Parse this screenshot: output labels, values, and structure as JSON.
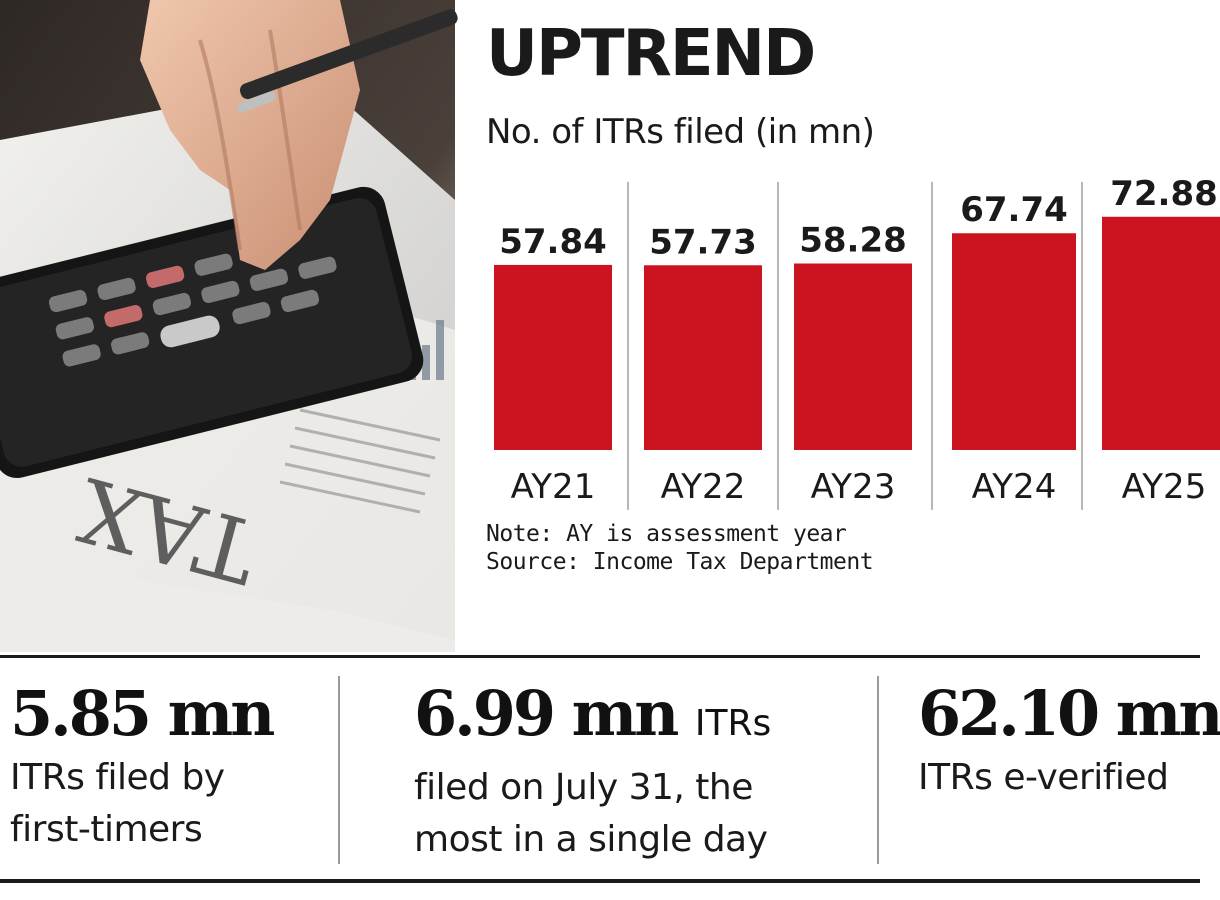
{
  "photo": {
    "paper_text": "TAX"
  },
  "chart_data": {
    "type": "bar",
    "title": "UPTREND",
    "subtitle": "No. of ITRs filed (in mn)",
    "categories": [
      "AY21",
      "AY22",
      "AY23",
      "AY24",
      "AY25"
    ],
    "value_labels": [
      "57.84",
      "57.73",
      "58.28",
      "67.74",
      "72.88"
    ],
    "values": [
      57.84,
      57.73,
      58.28,
      67.74,
      72.88
    ],
    "note": "Note: AY is assessment year",
    "source": "Source: Income Tax Department",
    "bar_color": "#cc1420",
    "grid": false
  },
  "stats": [
    {
      "value": "5.85 mn",
      "suffix": "",
      "lines": [
        "ITRs filed by",
        "first-timers"
      ]
    },
    {
      "value": "6.99 mn",
      "suffix": "ITRs",
      "lines": [
        "filed on July 31, the",
        "most in a single day"
      ]
    },
    {
      "value": "62.10 mn",
      "suffix": "",
      "lines": [
        "ITRs e-verified",
        ""
      ]
    }
  ]
}
